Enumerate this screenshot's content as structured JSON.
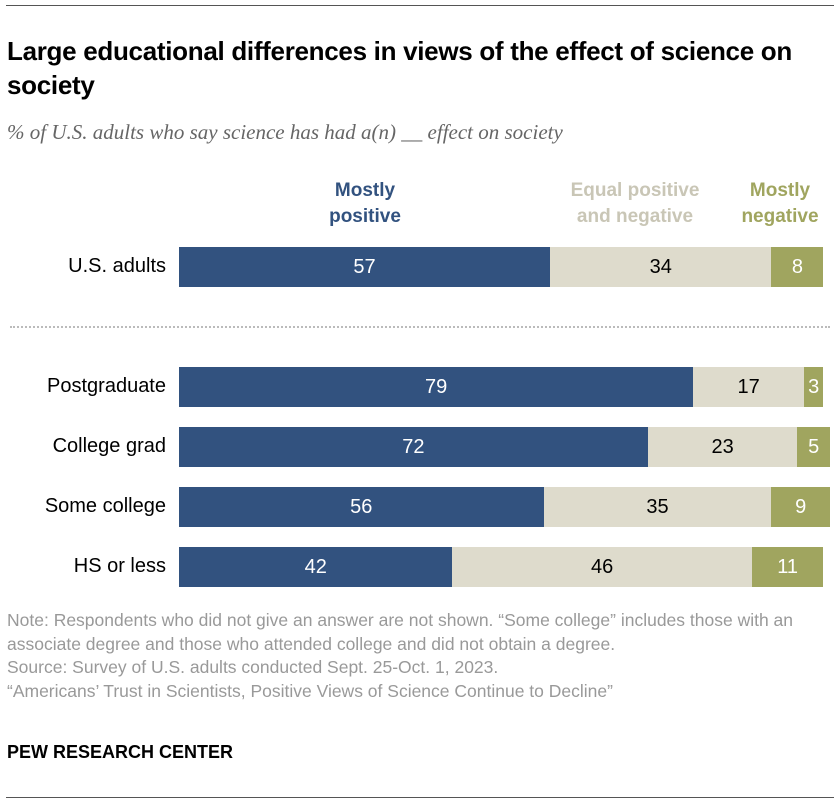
{
  "title": "Large educational differences in views of the effect of science on society",
  "subtitle": "% of U.S. adults who say science has had a(n) __ effect on society",
  "chart_data": {
    "type": "bar",
    "orientation": "horizontal",
    "stacked": true,
    "categories": [
      "U.S. adults",
      "Postgraduate",
      "College grad",
      "Some college",
      "HS or less"
    ],
    "series": [
      {
        "name": "Mostly positive",
        "color": "#32527f",
        "label_color": "#ffffff",
        "values": [
          57,
          79,
          72,
          56,
          42
        ]
      },
      {
        "name": "Equal positive and negative",
        "color": "#dedbcc",
        "label_color": "#000000",
        "values": [
          34,
          17,
          23,
          35,
          46
        ]
      },
      {
        "name": "Mostly negative",
        "color": "#a0a55f",
        "label_color": "#ffffff",
        "values": [
          8,
          3,
          5,
          9,
          11
        ]
      }
    ],
    "legend_placement": "top",
    "legend_text_colors": [
      "#32527f",
      "#c9c6b6",
      "#a0a55f"
    ],
    "xlim": [
      0,
      100
    ],
    "grid": false
  },
  "notes": [
    "Note: Respondents who did not give an answer are not shown. “Some college” includes those with an associate degree and those who attended college and did not obtain a degree.",
    "Source: Survey of U.S. adults conducted Sept. 25-Oct. 1, 2023.",
    "“Americans’ Trust in Scientists, Positive Views of Science Continue to Decline”"
  ],
  "brand": "PEW RESEARCH CENTER"
}
